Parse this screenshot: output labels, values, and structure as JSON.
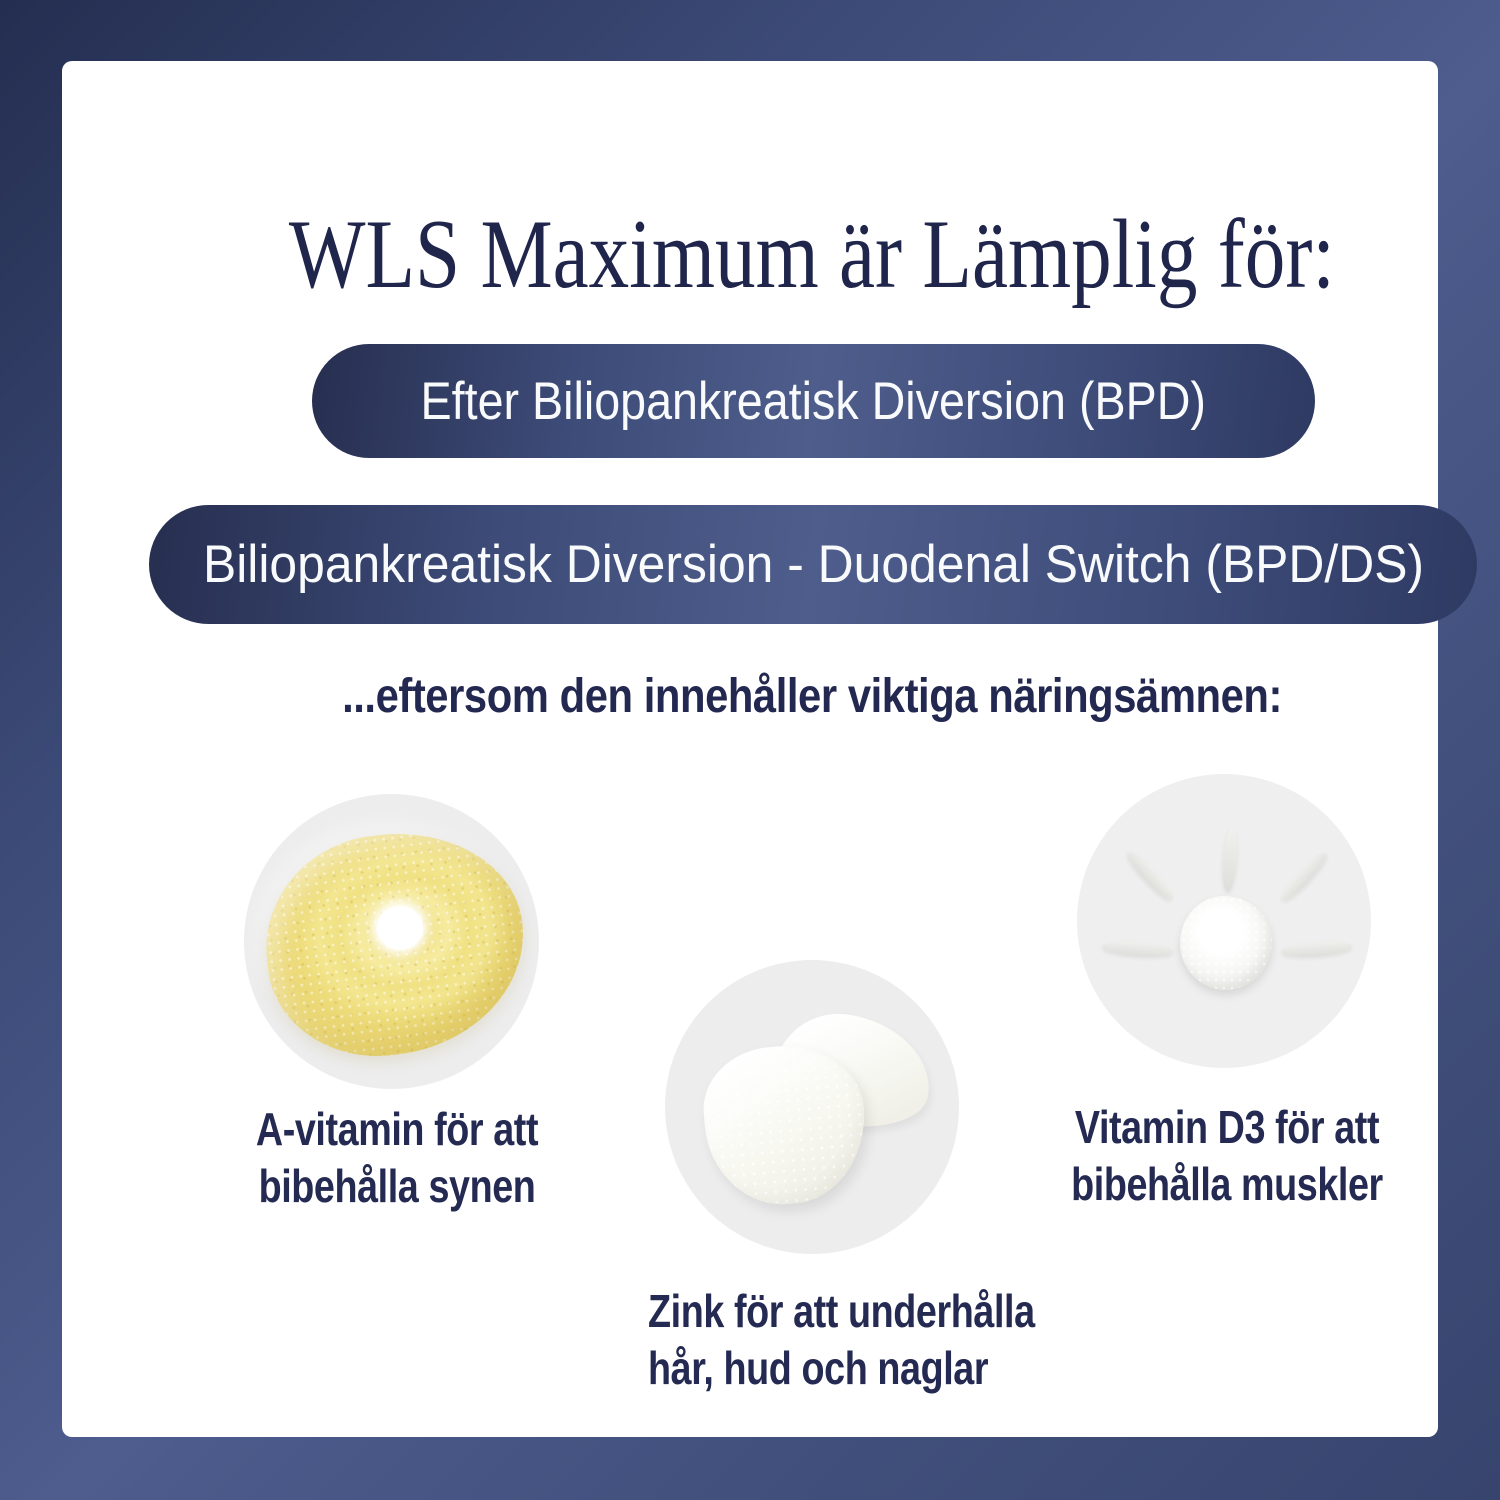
{
  "page": {
    "title": "WLS Maximum är Lämplig för:",
    "subtitle": "...eftersom den innehåller viktiga näringsämnen:"
  },
  "banners": [
    {
      "label": "Efter Biliopankreatisk Diversion (BPD)"
    },
    {
      "label": "Biliopankreatisk Diversion - Duodenal Switch (BPD/DS)"
    }
  ],
  "nutrients": [
    {
      "name": "vitamin-a",
      "image": "yellow-powder-pile",
      "caption_line1": "A-vitamin för att",
      "caption_line2": "bibehålla synen"
    },
    {
      "name": "zink",
      "image": "white-cream-smear",
      "caption_line1": "Zink för att underhålla",
      "caption_line2": "hår, hud och naglar"
    },
    {
      "name": "vitamin-d3",
      "image": "powder-sun-tablet",
      "caption_line1": "Vitamin D3 för att",
      "caption_line2": "bibehålla muskler"
    }
  ],
  "colors": {
    "background_gradient_start": "#242e50",
    "background_gradient_mid": "#4e5c8e",
    "background_gradient_end": "#37446e",
    "card_background": "#ffffff",
    "title_text": "#20254c",
    "body_text": "#242a52",
    "pill_gradient_edge": "#272f50",
    "pill_gradient_center": "#4e5d8b",
    "pill_text": "#f9fafc",
    "figure_circle_background": "#ededee",
    "powder_yellow": "#f0e183"
  }
}
